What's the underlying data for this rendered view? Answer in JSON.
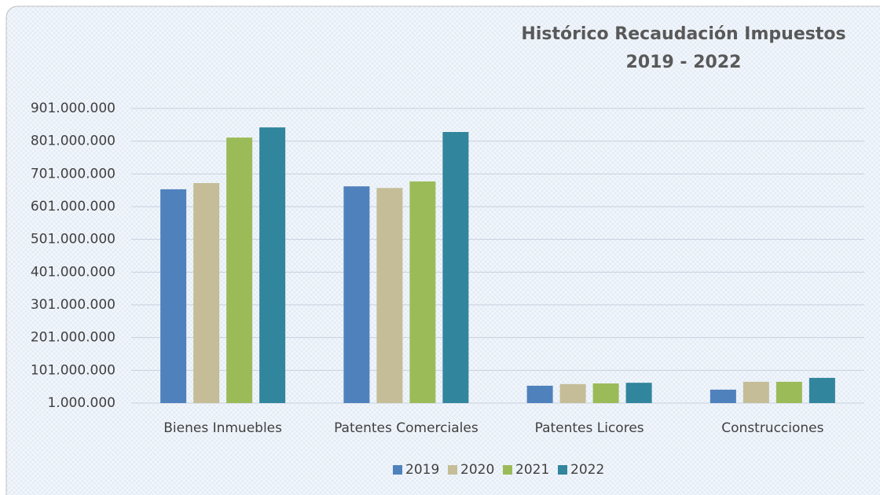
{
  "chart_data": {
    "type": "bar",
    "title": "Histórico Recaudación Impuestos",
    "subtitle": "2019 - 2022",
    "categories": [
      "Bienes Inmuebles",
      "Patentes Comerciales",
      "Patentes Licores",
      "Construcciones"
    ],
    "series": [
      {
        "name": "2019",
        "color": "#4f81bd",
        "values": [
          654000000,
          663000000,
          54000000,
          42000000
        ]
      },
      {
        "name": "2020",
        "color": "#c4bd97",
        "values": [
          673000000,
          658000000,
          59000000,
          66000000
        ]
      },
      {
        "name": "2021",
        "color": "#9bbb59",
        "values": [
          812000000,
          678000000,
          61000000,
          66000000
        ]
      },
      {
        "name": "2022",
        "color": "#31859c",
        "values": [
          843000000,
          829000000,
          63000000,
          78000000
        ]
      }
    ],
    "ylim": [
      1000000,
      901000000
    ],
    "yticks": [
      {
        "value": 1000000,
        "label": "1.000.000"
      },
      {
        "value": 101000000,
        "label": "101.000.000"
      },
      {
        "value": 201000000,
        "label": "201.000.000"
      },
      {
        "value": 301000000,
        "label": "301.000.000"
      },
      {
        "value": 401000000,
        "label": "401.000.000"
      },
      {
        "value": 501000000,
        "label": "501.000.000"
      },
      {
        "value": 601000000,
        "label": "601.000.000"
      },
      {
        "value": 701000000,
        "label": "701.000.000"
      },
      {
        "value": 801000000,
        "label": "801.000.000"
      },
      {
        "value": 901000000,
        "label": "901.000.000"
      }
    ],
    "grid": true,
    "legend": "bottom"
  }
}
